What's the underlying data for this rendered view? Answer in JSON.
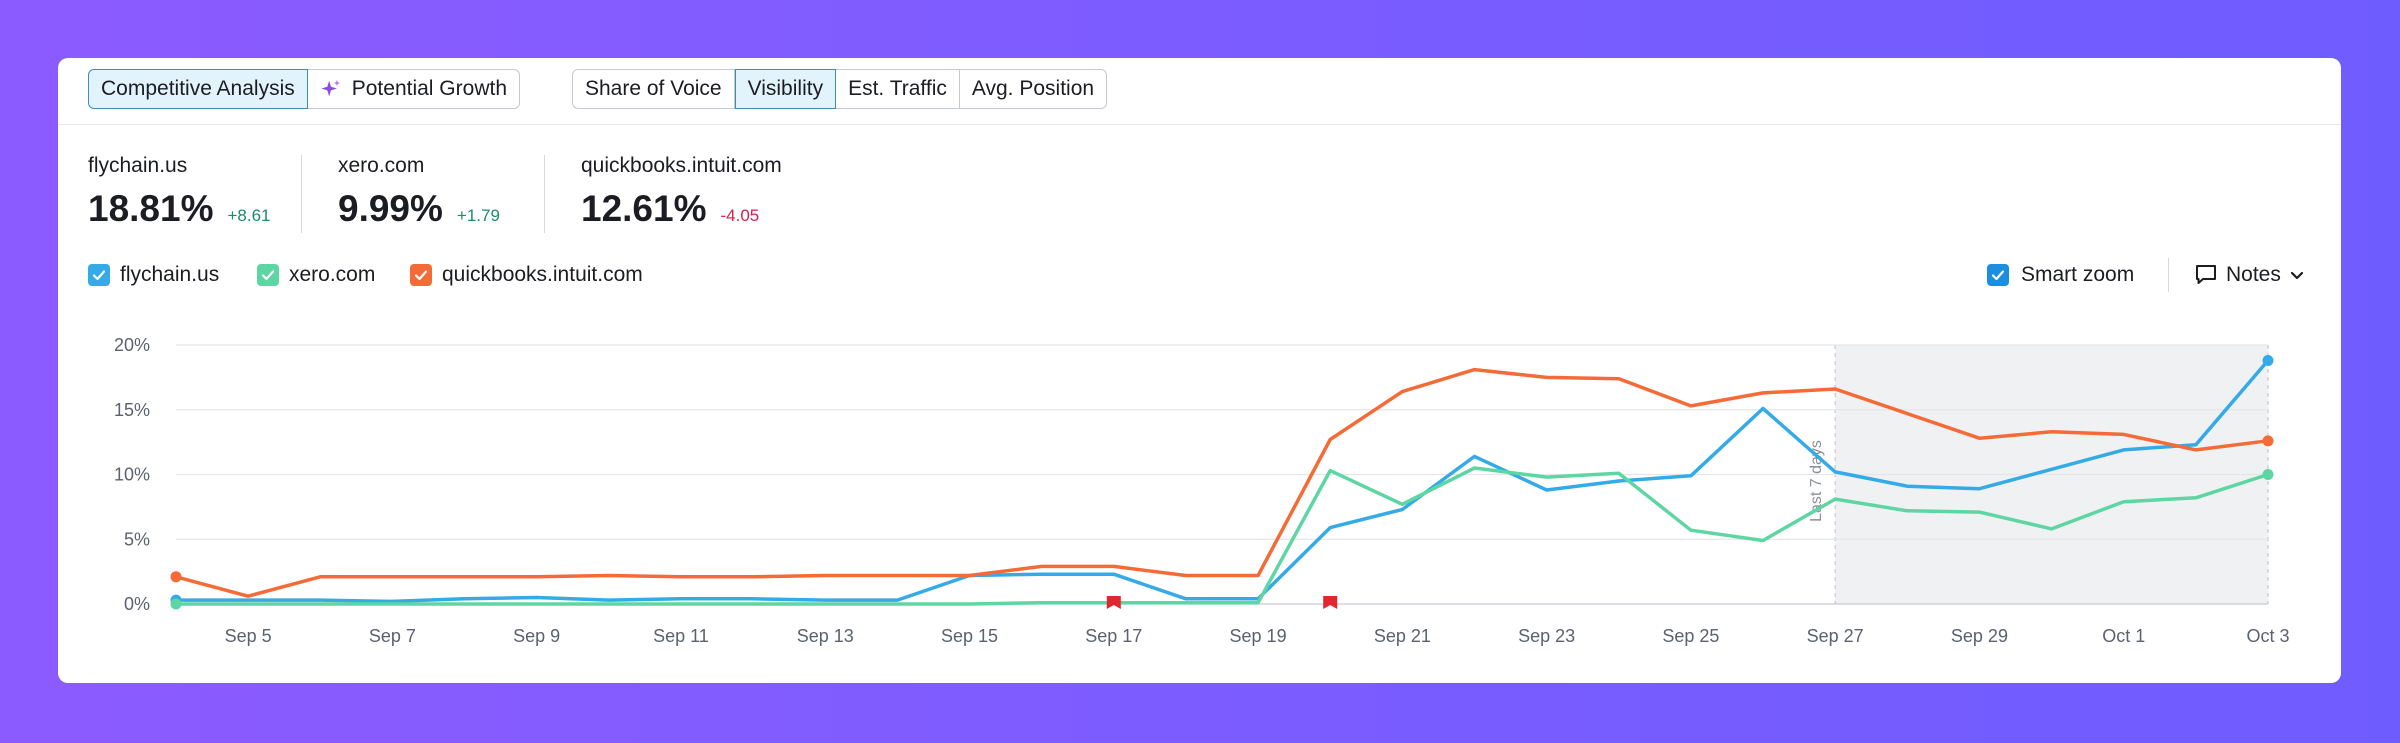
{
  "toolbar": {
    "mode_tabs": [
      {
        "label": "Competitive Analysis",
        "active": true,
        "icon": ""
      },
      {
        "label": "Potential Growth",
        "active": false,
        "icon": "sparkle-icon"
      }
    ],
    "metric_tabs": [
      {
        "label": "Share of Voice",
        "active": false
      },
      {
        "label": "Visibility",
        "active": true
      },
      {
        "label": "Est. Traffic",
        "active": false
      },
      {
        "label": "Avg. Position",
        "active": false
      }
    ]
  },
  "metrics": [
    {
      "domain": "flychain.us",
      "value": "18.81%",
      "delta": "+8.61",
      "trend": "up"
    },
    {
      "domain": "xero.com",
      "value": "9.99%",
      "delta": "+1.79",
      "trend": "up"
    },
    {
      "domain": "quickbooks.intuit.com",
      "value": "12.61%",
      "delta": "-4.05",
      "trend": "down"
    }
  ],
  "legend": [
    {
      "label": "flychain.us",
      "color": "#34abe7"
    },
    {
      "label": "xero.com",
      "color": "#5ed6a3"
    },
    {
      "label": "quickbooks.intuit.com",
      "color": "#f46b38"
    }
  ],
  "controls": {
    "smart_zoom_label": "Smart zoom",
    "notes_label": "Notes"
  },
  "chart_data": {
    "type": "line",
    "x": [
      "Sep 4",
      "Sep 5",
      "Sep 6",
      "Sep 7",
      "Sep 8",
      "Sep 9",
      "Sep 10",
      "Sep 11",
      "Sep 12",
      "Sep 13",
      "Sep 14",
      "Sep 15",
      "Sep 16",
      "Sep 17",
      "Sep 18",
      "Sep 19",
      "Sep 20",
      "Sep 21",
      "Sep 22",
      "Sep 23",
      "Sep 24",
      "Sep 25",
      "Sep 26",
      "Sep 27",
      "Sep 28",
      "Sep 29",
      "Sep 30",
      "Oct 1",
      "Oct 2",
      "Oct 3"
    ],
    "x_tick_labels": [
      "Sep 5",
      "Sep 7",
      "Sep 9",
      "Sep 11",
      "Sep 13",
      "Sep 15",
      "Sep 17",
      "Sep 19",
      "Sep 21",
      "Sep 23",
      "Sep 25",
      "Sep 27",
      "Sep 29",
      "Oct 1",
      "Oct 3"
    ],
    "y_ticks": [
      "0%",
      "5%",
      "10%",
      "15%",
      "20%"
    ],
    "ylim": [
      0,
      20
    ],
    "grid": true,
    "series": [
      {
        "name": "flychain.us",
        "color": "#34abe7",
        "values": [
          0.3,
          0.3,
          0.3,
          0.2,
          0.4,
          0.5,
          0.3,
          0.4,
          0.4,
          0.3,
          0.3,
          2.2,
          2.3,
          2.3,
          0.4,
          0.4,
          5.9,
          7.3,
          11.4,
          8.8,
          9.5,
          9.9,
          15.1,
          10.2,
          9.1,
          8.9,
          10.4,
          11.9,
          12.3,
          18.8
        ]
      },
      {
        "name": "xero.com",
        "color": "#5ed6a3",
        "values": [
          0.0,
          0.0,
          0.0,
          0.0,
          0.0,
          0.0,
          0.0,
          0.0,
          0.0,
          0.0,
          0.0,
          0.0,
          0.1,
          0.1,
          0.1,
          0.1,
          10.3,
          7.7,
          10.5,
          9.8,
          10.1,
          5.7,
          4.9,
          8.1,
          7.2,
          7.1,
          5.8,
          7.9,
          8.2,
          10.0
        ]
      },
      {
        "name": "quickbooks.intuit.com",
        "color": "#f46b38",
        "values": [
          2.1,
          0.6,
          2.1,
          2.1,
          2.1,
          2.1,
          2.2,
          2.1,
          2.1,
          2.2,
          2.2,
          2.2,
          2.9,
          2.9,
          2.2,
          2.2,
          12.7,
          16.4,
          18.1,
          17.5,
          17.4,
          15.3,
          16.3,
          16.6,
          14.7,
          12.8,
          13.3,
          13.1,
          11.9,
          12.6
        ]
      }
    ],
    "highlight": {
      "label": "Last 7 days",
      "from": "Sep 27",
      "to": "Oct 3"
    },
    "note_markers": [
      "Sep 17",
      "Sep 20"
    ]
  }
}
